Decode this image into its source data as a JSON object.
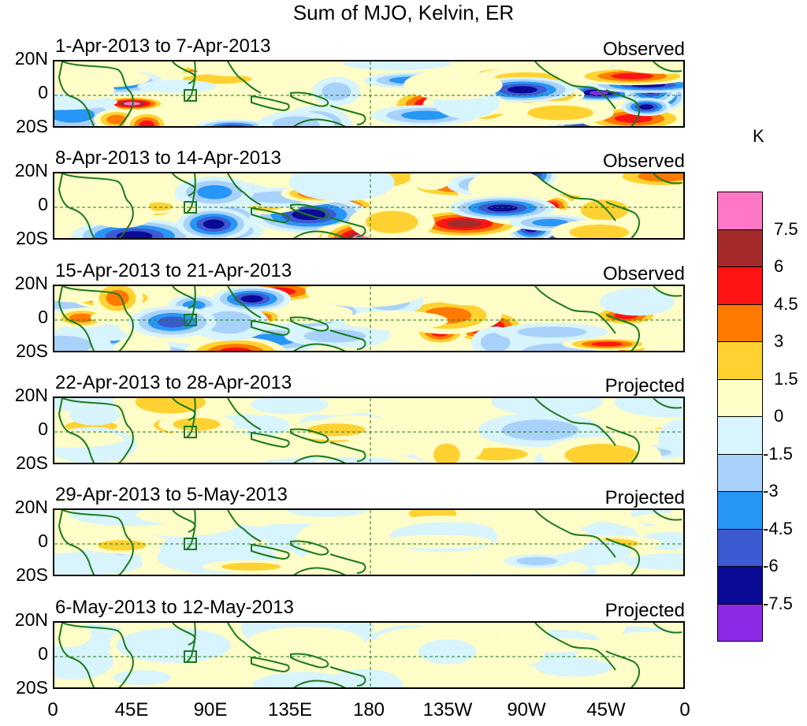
{
  "title": "Sum of MJO, Kelvin, ER",
  "unit": "K",
  "y_ticks": [
    "20N",
    "0",
    "20S"
  ],
  "x_ticks": [
    "0",
    "45E",
    "90E",
    "135E",
    "180",
    "135W",
    "90W",
    "45W",
    "0"
  ],
  "panels": [
    {
      "period": "1-Apr-2013 to 7-Apr-2013",
      "status": "Observed",
      "intensity": 1.0
    },
    {
      "period": "8-Apr-2013 to 14-Apr-2013",
      "status": "Observed",
      "intensity": 0.95
    },
    {
      "period": "15-Apr-2013 to 21-Apr-2013",
      "status": "Observed",
      "intensity": 0.85
    },
    {
      "period": "22-Apr-2013 to 28-Apr-2013",
      "status": "Projected",
      "intensity": 0.35
    },
    {
      "period": "29-Apr-2013 to 5-May-2013",
      "status": "Projected",
      "intensity": 0.3
    },
    {
      "period": "6-May-2013 to 12-May-2013",
      "status": "Projected",
      "intensity": 0.25
    }
  ],
  "colorbar": {
    "labels": [
      "7.5",
      "6",
      "4.5",
      "3",
      "1.5",
      "0",
      "-1.5",
      "-3",
      "-4.5",
      "-6",
      "-7.5"
    ],
    "colors": [
      "#ff78c8",
      "#a52a2a",
      "#ff1414",
      "#ff7a00",
      "#ffd232",
      "#fffdc8",
      "#d8f4fc",
      "#a8d2fa",
      "#2896f5",
      "#3c5ad2",
      "#0a0a96",
      "#8c2ae6"
    ]
  }
}
